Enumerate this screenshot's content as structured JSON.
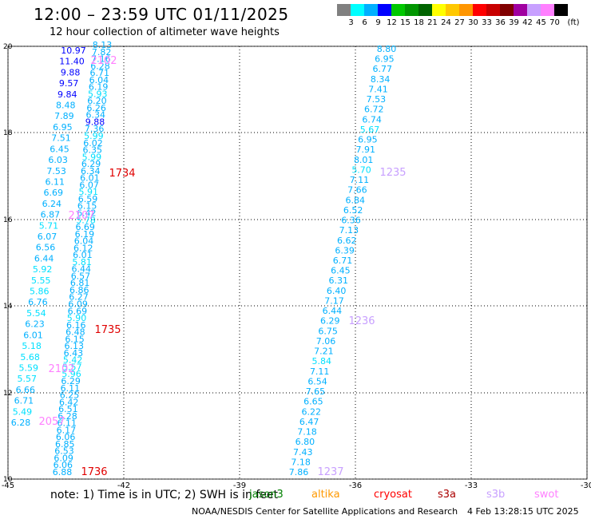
{
  "title": "12:00 – 23:59 UTC 01/11/2025",
  "subtitle": "12 hour collection of altimeter wave heights",
  "color_scale": {
    "unit": "(ft)",
    "colors": [
      "#808080",
      "#00ffff",
      "#00b0ff",
      "#0000ff",
      "#00c800",
      "#009600",
      "#006400",
      "#ffff00",
      "#ffc800",
      "#ff9600",
      "#ff0000",
      "#c80000",
      "#800000",
      "#a000a0",
      "#c8a0ff",
      "#ff80ff",
      "#000000"
    ],
    "labels": [
      "3",
      "6",
      "9",
      "12",
      "15",
      "18",
      "21",
      "24",
      "27",
      "30",
      "33",
      "36",
      "39",
      "42",
      "45",
      "70"
    ]
  },
  "axes": {
    "x_ticks": [
      "-45",
      "-42",
      "-39",
      "-36",
      "-33",
      "-30"
    ],
    "y_ticks": [
      "20",
      "18",
      "16",
      "14",
      "12",
      "10"
    ]
  },
  "track_times": {
    "pink": [
      "2102",
      "2107",
      "2102",
      "2057"
    ],
    "red": [
      "1734",
      "1735",
      "1736"
    ],
    "lavender": [
      "1235",
      "1236",
      "1237"
    ]
  },
  "tracks": {
    "a": [
      "10.97",
      "11.40",
      "9.88",
      "9.57",
      "9.84",
      "8.48",
      "7.89",
      "6.95",
      "7.51",
      "6.45",
      "6.03",
      "7.53",
      "6.11",
      "6.69",
      "6.24",
      "6.87",
      "5.71",
      "6.07",
      "6.56",
      "6.44",
      "5.92",
      "5.55",
      "5.86",
      "6.76",
      "5.54",
      "6.23",
      "6.01",
      "5.18",
      "5.68",
      "5.59",
      "5.57",
      "6.66",
      "6.71",
      "5.49",
      "6.28"
    ],
    "b": [
      "8.13",
      "7.82",
      "7.16",
      "6.28",
      "6.71",
      "6.04",
      "6.19",
      "5.93",
      "6.20",
      "6.26",
      "6.34",
      "9.88",
      "7.36",
      "5.99",
      "6.02",
      "6.35",
      "5.99",
      "6.29",
      "6.34",
      "6.01",
      "6.07",
      "5.91",
      "6.59",
      "6.15",
      "6.42",
      "5.78",
      "6.69",
      "6.19",
      "6.04",
      "6.12",
      "6.01",
      "5.81",
      "6.44",
      "6.57",
      "6.81",
      "6.86",
      "6.27",
      "6.09",
      "6.69",
      "5.90",
      "6.16",
      "6.48",
      "6.15",
      "6.13",
      "6.43",
      "5.42",
      "5.57",
      "5.96",
      "6.29",
      "6.11",
      "6.25",
      "6.42",
      "6.51",
      "6.28",
      "6.11",
      "6.17",
      "6.06",
      "6.85",
      "6.53",
      "6.09",
      "6.06",
      "6.88"
    ],
    "c": [
      "8.80",
      "6.95",
      "6.77",
      "8.34",
      "7.41",
      "7.53",
      "6.72",
      "6.74",
      "5.67",
      "6.95",
      "7.91",
      "8.01",
      "5.70",
      "7.11",
      "7.66",
      "6.84",
      "6.52",
      "6.36",
      "7.13",
      "6.62",
      "6.39",
      "6.71",
      "6.45",
      "6.31",
      "6.40",
      "7.17",
      "6.44",
      "6.29",
      "6.75",
      "7.06",
      "7.21",
      "5.84",
      "7.11",
      "6.54",
      "7.65",
      "6.65",
      "6.22",
      "6.47",
      "7.18",
      "6.80",
      "7.43",
      "7.18",
      "7.86"
    ]
  },
  "legend": {
    "note": "note:  1) Time is in UTC;  2) SWH is in feet",
    "sats": [
      {
        "name": "jason3",
        "color": "#008000"
      },
      {
        "name": "altika",
        "color": "#ff9900"
      },
      {
        "name": "cryosat",
        "color": "#ff0000"
      },
      {
        "name": "s3a",
        "color": "#aa0000"
      },
      {
        "name": "s3b",
        "color": "#c8a0ff"
      },
      {
        "name": "swot",
        "color": "#ff80ff"
      }
    ]
  },
  "credit": "NOAA/NESDIS Center for Satellite Applications and Research",
  "generated": "4 Feb 13:28:15 UTC 2025"
}
